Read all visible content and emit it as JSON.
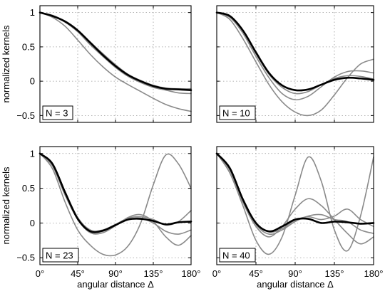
{
  "chart_data": [
    {
      "type": "line",
      "panel_label": "N = 3",
      "ylabel": "normalized kernels",
      "xlabel": "",
      "xlim": [
        0,
        180
      ],
      "ylim": [
        -0.6,
        1.1
      ],
      "x_ticks": [
        0,
        45,
        90,
        135,
        180
      ],
      "x_tick_labels": [],
      "y_ticks": [
        -0.5,
        0,
        0.5,
        1
      ],
      "y_tick_labels": [
        "−0.5",
        "0",
        "0.5",
        "1"
      ],
      "grid": true,
      "legend": "none",
      "x": [
        0,
        15,
        30,
        45,
        60,
        75,
        90,
        105,
        120,
        135,
        150,
        165,
        180
      ],
      "series": [
        {
          "color": "#8a8a8a",
          "width": 1.6,
          "values": [
            1,
            0.93,
            0.8,
            0.6,
            0.39,
            0.21,
            0.06,
            -0.05,
            -0.15,
            -0.25,
            -0.34,
            -0.4,
            -0.44
          ]
        },
        {
          "color": "#8a8a8a",
          "width": 1.6,
          "values": [
            1,
            0.95,
            0.86,
            0.72,
            0.53,
            0.36,
            0.2,
            0.07,
            -0.02,
            -0.09,
            -0.13,
            -0.17,
            -0.18
          ]
        },
        {
          "color": "#8a8a8a",
          "width": 1.6,
          "values": [
            1,
            0.96,
            0.87,
            0.74,
            0.57,
            0.4,
            0.24,
            0.1,
            0.01,
            -0.06,
            -0.1,
            -0.11,
            -0.11
          ]
        },
        {
          "color": "#000000",
          "width": 2.6,
          "values": [
            1,
            0.95,
            0.87,
            0.74,
            0.56,
            0.38,
            0.22,
            0.09,
            0.0,
            -0.07,
            -0.11,
            -0.12,
            -0.13
          ]
        }
      ]
    },
    {
      "type": "line",
      "panel_label": "N = 10",
      "ylabel": "",
      "xlabel": "",
      "xlim": [
        0,
        180
      ],
      "ylim": [
        -0.6,
        1.1
      ],
      "x_ticks": [
        0,
        45,
        90,
        135,
        180
      ],
      "x_tick_labels": [],
      "y_ticks": [
        -0.5,
        0,
        0.5,
        1
      ],
      "y_tick_labels": [],
      "grid": true,
      "legend": "none",
      "x": [
        0,
        15,
        30,
        45,
        60,
        75,
        90,
        105,
        120,
        135,
        150,
        165,
        180
      ],
      "series": [
        {
          "color": "#8a8a8a",
          "width": 1.6,
          "values": [
            1,
            0.9,
            0.62,
            0.28,
            -0.05,
            -0.3,
            -0.45,
            -0.5,
            -0.42,
            -0.2,
            0.05,
            0.25,
            0.32
          ]
        },
        {
          "color": "#8a8a8a",
          "width": 1.6,
          "values": [
            1,
            0.93,
            0.7,
            0.36,
            0.05,
            -0.18,
            -0.27,
            -0.22,
            -0.08,
            0.06,
            0.14,
            0.15,
            0.12
          ]
        },
        {
          "color": "#8a8a8a",
          "width": 1.6,
          "values": [
            1,
            0.95,
            0.73,
            0.4,
            0.1,
            -0.09,
            -0.18,
            -0.15,
            -0.05,
            0.04,
            0.08,
            0.07,
            0.03
          ]
        },
        {
          "color": "#000000",
          "width": 2.6,
          "values": [
            1,
            0.95,
            0.74,
            0.42,
            0.12,
            -0.06,
            -0.13,
            -0.12,
            -0.05,
            0.02,
            0.05,
            0.04,
            0.02
          ]
        }
      ]
    },
    {
      "type": "line",
      "panel_label": "N = 23",
      "ylabel": "normalized kernels",
      "xlabel": "angular distance Δ",
      "xlim": [
        0,
        180
      ],
      "ylim": [
        -0.6,
        1.1
      ],
      "x_ticks": [
        0,
        45,
        90,
        135,
        180
      ],
      "x_tick_labels": [
        "0°",
        "45°",
        "90°",
        "135°",
        "180°"
      ],
      "y_ticks": [
        -0.5,
        0,
        0.5,
        1
      ],
      "y_tick_labels": [
        "−0.5",
        "0",
        "0.5",
        "1"
      ],
      "grid": true,
      "legend": "none",
      "x": [
        0,
        15,
        30,
        45,
        60,
        75,
        90,
        105,
        120,
        135,
        150,
        165,
        180
      ],
      "series": [
        {
          "color": "#8a8a8a",
          "width": 1.6,
          "values": [
            1,
            0.78,
            0.3,
            -0.1,
            -0.32,
            -0.45,
            -0.46,
            -0.33,
            0.0,
            0.55,
            0.98,
            0.85,
            0.5
          ]
        },
        {
          "color": "#8a8a8a",
          "width": 1.6,
          "values": [
            1,
            0.82,
            0.4,
            0.05,
            -0.14,
            -0.14,
            -0.04,
            0.08,
            0.12,
            0.02,
            -0.2,
            -0.32,
            -0.18
          ]
        },
        {
          "color": "#8a8a8a",
          "width": 1.6,
          "values": [
            1,
            0.84,
            0.43,
            0.06,
            -0.12,
            -0.12,
            -0.03,
            0.05,
            0.07,
            0.0,
            -0.12,
            -0.16,
            -0.1
          ]
        },
        {
          "color": "#8a8a8a",
          "width": 1.6,
          "values": [
            1,
            0.85,
            0.45,
            0.08,
            -0.1,
            -0.1,
            -0.02,
            0.07,
            0.09,
            0.05,
            -0.03,
            0.02,
            0.18
          ]
        },
        {
          "color": "#000000",
          "width": 2.6,
          "values": [
            1,
            0.85,
            0.44,
            0.06,
            -0.12,
            -0.11,
            -0.03,
            0.05,
            0.06,
            0.03,
            -0.02,
            0.01,
            0.02
          ]
        }
      ]
    },
    {
      "type": "line",
      "panel_label": "N = 40",
      "ylabel": "",
      "xlabel": "angular distance Δ",
      "xlim": [
        0,
        180
      ],
      "ylim": [
        -0.6,
        1.1
      ],
      "x_ticks": [
        0,
        45,
        90,
        135,
        180
      ],
      "x_tick_labels": [
        "0°",
        "45°",
        "90°",
        "135°",
        "180°"
      ],
      "y_ticks": [
        -0.5,
        0,
        0.5,
        1
      ],
      "y_tick_labels": [],
      "grid": true,
      "legend": "none",
      "x": [
        0,
        15,
        30,
        45,
        60,
        75,
        90,
        105,
        120,
        135,
        150,
        165,
        180
      ],
      "series": [
        {
          "color": "#8a8a8a",
          "width": 1.6,
          "values": [
            1,
            0.72,
            0.25,
            -0.25,
            -0.45,
            -0.2,
            0.4,
            0.95,
            0.6,
            -0.1,
            -0.4,
            0.1,
            0.95
          ]
        },
        {
          "color": "#8a8a8a",
          "width": 1.6,
          "values": [
            1,
            0.76,
            0.3,
            -0.05,
            -0.2,
            -0.05,
            0.2,
            0.35,
            0.25,
            0.05,
            -0.15,
            -0.3,
            -0.2
          ]
        },
        {
          "color": "#8a8a8a",
          "width": 1.6,
          "values": [
            1,
            0.78,
            0.33,
            -0.02,
            -0.16,
            -0.1,
            0.02,
            0.1,
            0.12,
            0.05,
            0.02,
            -0.1,
            -0.15
          ]
        },
        {
          "color": "#8a8a8a",
          "width": 1.6,
          "values": [
            1,
            0.79,
            0.34,
            0.0,
            -0.13,
            -0.08,
            0.04,
            0.09,
            0.05,
            0.1,
            0.2,
            0.05,
            -0.05
          ]
        },
        {
          "color": "#000000",
          "width": 2.6,
          "values": [
            1,
            0.79,
            0.34,
            0.0,
            -0.12,
            -0.05,
            0.05,
            0.06,
            0.0,
            0.02,
            0.01,
            -0.01,
            0.0
          ]
        }
      ]
    }
  ]
}
